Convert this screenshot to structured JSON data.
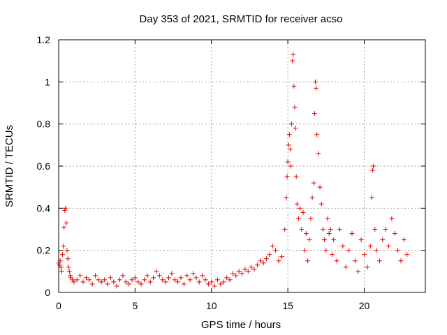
{
  "chart_data": {
    "type": "scatter",
    "title": "Day 353 of 2021, SRMTID for receiver acso",
    "xlabel": "GPS time / hours",
    "ylabel": "SRMTID / TECUs",
    "xlim": [
      0,
      24
    ],
    "ylim": [
      0,
      1.2
    ],
    "x_ticks": [
      0,
      5,
      10,
      15,
      20
    ],
    "x_tick_labels": [
      "0",
      "5",
      "10",
      "15",
      "20"
    ],
    "y_ticks": [
      0,
      0.2,
      0.4,
      0.6,
      0.8,
      1.0,
      1.2
    ],
    "y_tick_labels": [
      "0",
      "0.2",
      "0.4",
      "0.6",
      "0.8",
      "1",
      "1.2"
    ],
    "grid": true,
    "marker": "+",
    "color": "#e00000",
    "series": [
      {
        "name": "SRMTID",
        "points": [
          [
            0.0,
            0.14
          ],
          [
            0.05,
            0.13
          ],
          [
            0.1,
            0.15
          ],
          [
            0.15,
            0.12
          ],
          [
            0.2,
            0.1
          ],
          [
            0.25,
            0.18
          ],
          [
            0.3,
            0.22
          ],
          [
            0.35,
            0.31
          ],
          [
            0.4,
            0.39
          ],
          [
            0.45,
            0.4
          ],
          [
            0.5,
            0.33
          ],
          [
            0.55,
            0.2
          ],
          [
            0.6,
            0.16
          ],
          [
            0.65,
            0.12
          ],
          [
            0.7,
            0.1
          ],
          [
            0.75,
            0.08
          ],
          [
            0.8,
            0.07
          ],
          [
            0.9,
            0.06
          ],
          [
            1.0,
            0.05
          ],
          [
            1.2,
            0.06
          ],
          [
            1.4,
            0.08
          ],
          [
            1.6,
            0.05
          ],
          [
            1.8,
            0.07
          ],
          [
            2.0,
            0.06
          ],
          [
            2.2,
            0.04
          ],
          [
            2.4,
            0.08
          ],
          [
            2.6,
            0.06
          ],
          [
            2.8,
            0.05
          ],
          [
            3.0,
            0.06
          ],
          [
            3.2,
            0.04
          ],
          [
            3.4,
            0.07
          ],
          [
            3.6,
            0.05
          ],
          [
            3.8,
            0.03
          ],
          [
            4.0,
            0.06
          ],
          [
            4.2,
            0.08
          ],
          [
            4.4,
            0.05
          ],
          [
            4.6,
            0.04
          ],
          [
            4.8,
            0.06
          ],
          [
            5.0,
            0.07
          ],
          [
            5.2,
            0.05
          ],
          [
            5.4,
            0.04
          ],
          [
            5.6,
            0.06
          ],
          [
            5.8,
            0.08
          ],
          [
            6.0,
            0.05
          ],
          [
            6.2,
            0.07
          ],
          [
            6.4,
            0.1
          ],
          [
            6.6,
            0.08
          ],
          [
            6.8,
            0.06
          ],
          [
            7.0,
            0.05
          ],
          [
            7.2,
            0.07
          ],
          [
            7.4,
            0.09
          ],
          [
            7.6,
            0.06
          ],
          [
            7.8,
            0.05
          ],
          [
            8.0,
            0.07
          ],
          [
            8.2,
            0.04
          ],
          [
            8.4,
            0.08
          ],
          [
            8.6,
            0.06
          ],
          [
            8.8,
            0.09
          ],
          [
            9.0,
            0.07
          ],
          [
            9.2,
            0.05
          ],
          [
            9.4,
            0.08
          ],
          [
            9.6,
            0.06
          ],
          [
            9.8,
            0.04
          ],
          [
            10.0,
            0.05
          ],
          [
            10.2,
            0.03
          ],
          [
            10.4,
            0.06
          ],
          [
            10.6,
            0.04
          ],
          [
            10.8,
            0.05
          ],
          [
            11.0,
            0.07
          ],
          [
            11.2,
            0.06
          ],
          [
            11.4,
            0.09
          ],
          [
            11.6,
            0.08
          ],
          [
            11.8,
            0.1
          ],
          [
            12.0,
            0.09
          ],
          [
            12.2,
            0.11
          ],
          [
            12.4,
            0.1
          ],
          [
            12.6,
            0.12
          ],
          [
            12.8,
            0.11
          ],
          [
            13.0,
            0.13
          ],
          [
            13.2,
            0.15
          ],
          [
            13.4,
            0.14
          ],
          [
            13.6,
            0.16
          ],
          [
            13.8,
            0.18
          ],
          [
            14.0,
            0.22
          ],
          [
            14.2,
            0.2
          ],
          [
            14.4,
            0.15
          ],
          [
            14.6,
            0.17
          ],
          [
            14.8,
            0.3
          ],
          [
            14.9,
            0.45
          ],
          [
            14.95,
            0.55
          ],
          [
            15.0,
            0.62
          ],
          [
            15.05,
            0.7
          ],
          [
            15.1,
            0.75
          ],
          [
            15.15,
            0.68
          ],
          [
            15.2,
            0.6
          ],
          [
            15.25,
            0.8
          ],
          [
            15.3,
            1.1
          ],
          [
            15.35,
            1.13
          ],
          [
            15.4,
            0.98
          ],
          [
            15.45,
            0.88
          ],
          [
            15.5,
            0.78
          ],
          [
            15.55,
            0.55
          ],
          [
            15.6,
            0.42
          ],
          [
            15.7,
            0.35
          ],
          [
            15.8,
            0.4
          ],
          [
            15.9,
            0.3
          ],
          [
            16.0,
            0.38
          ],
          [
            16.1,
            0.2
          ],
          [
            16.2,
            0.28
          ],
          [
            16.3,
            0.15
          ],
          [
            16.4,
            0.25
          ],
          [
            16.5,
            0.35
          ],
          [
            16.6,
            0.45
          ],
          [
            16.7,
            0.52
          ],
          [
            16.75,
            0.85
          ],
          [
            16.8,
            1.0
          ],
          [
            16.85,
            0.97
          ],
          [
            16.9,
            0.75
          ],
          [
            17.0,
            0.66
          ],
          [
            17.1,
            0.5
          ],
          [
            17.2,
            0.42
          ],
          [
            17.3,
            0.3
          ],
          [
            17.4,
            0.25
          ],
          [
            17.5,
            0.2
          ],
          [
            17.6,
            0.35
          ],
          [
            17.7,
            0.28
          ],
          [
            17.8,
            0.3
          ],
          [
            17.9,
            0.18
          ],
          [
            18.0,
            0.25
          ],
          [
            18.2,
            0.15
          ],
          [
            18.4,
            0.3
          ],
          [
            18.6,
            0.22
          ],
          [
            18.8,
            0.12
          ],
          [
            19.0,
            0.2
          ],
          [
            19.2,
            0.28
          ],
          [
            19.4,
            0.15
          ],
          [
            19.6,
            0.1
          ],
          [
            19.8,
            0.25
          ],
          [
            20.0,
            0.18
          ],
          [
            20.2,
            0.12
          ],
          [
            20.4,
            0.22
          ],
          [
            20.5,
            0.45
          ],
          [
            20.55,
            0.58
          ],
          [
            20.6,
            0.6
          ],
          [
            20.7,
            0.3
          ],
          [
            20.8,
            0.2
          ],
          [
            21.0,
            0.15
          ],
          [
            21.2,
            0.25
          ],
          [
            21.4,
            0.3
          ],
          [
            21.6,
            0.22
          ],
          [
            21.8,
            0.35
          ],
          [
            22.0,
            0.28
          ],
          [
            22.2,
            0.2
          ],
          [
            22.4,
            0.15
          ],
          [
            22.6,
            0.25
          ],
          [
            22.8,
            0.18
          ]
        ]
      }
    ]
  }
}
